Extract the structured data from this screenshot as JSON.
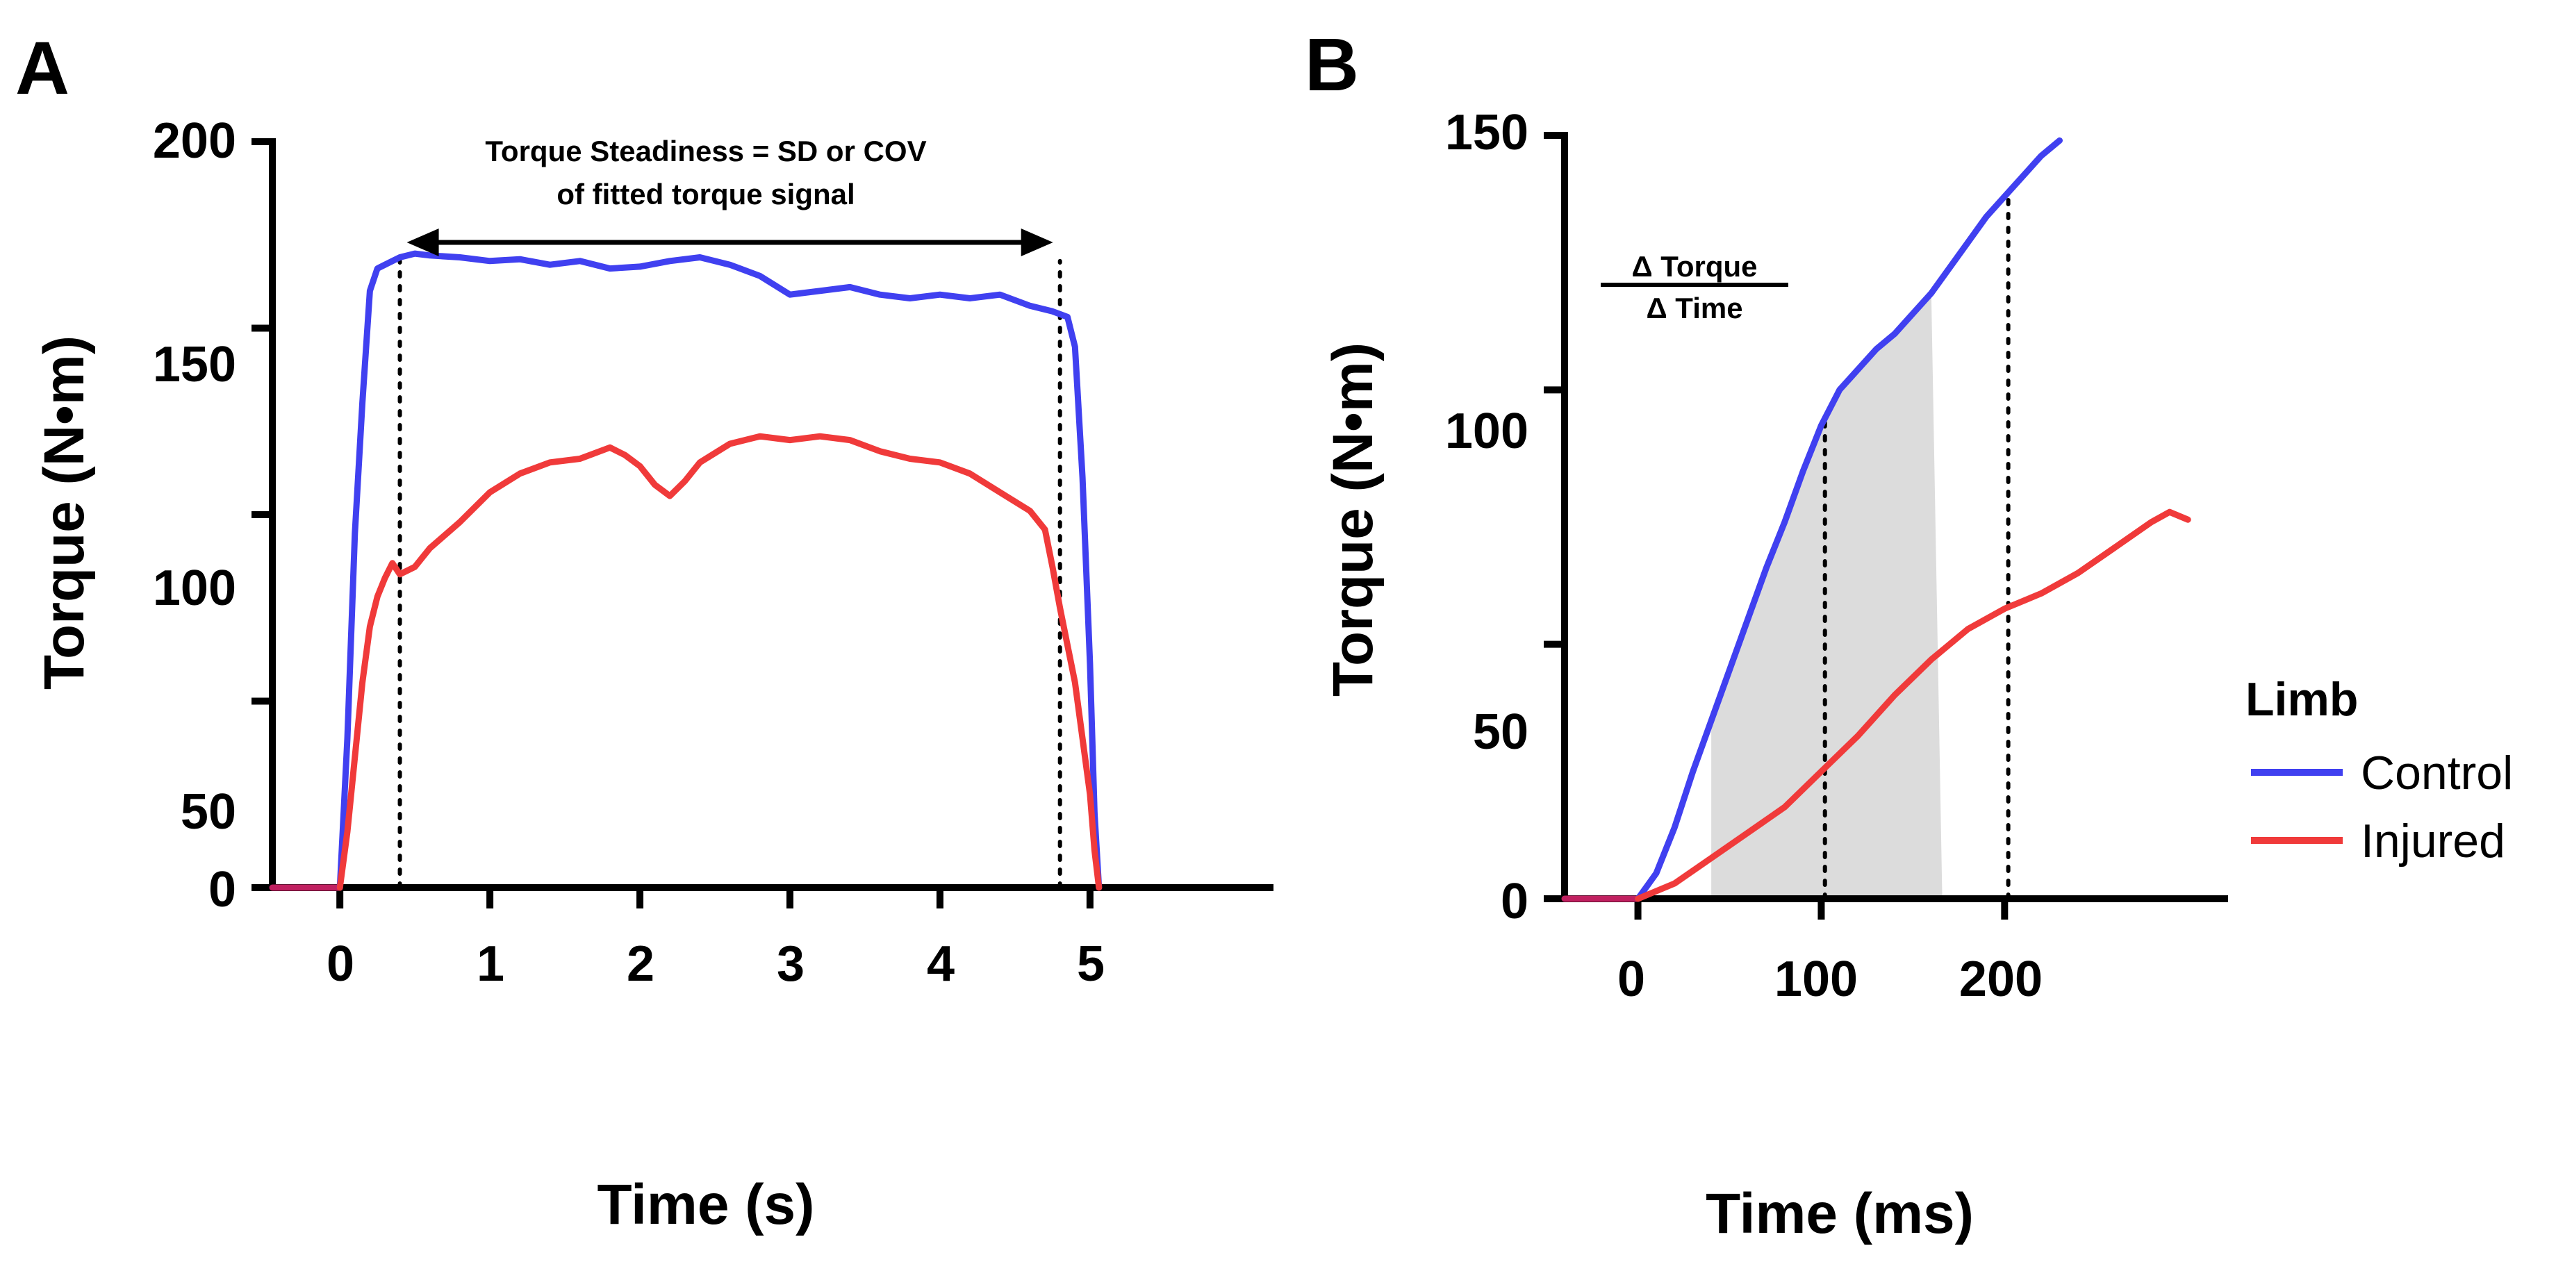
{
  "colors": {
    "control": "#4040f0",
    "injured": "#f03a3a",
    "pre_onset": "#c02060",
    "shade": "#dcdcdc"
  },
  "chart_data": [
    {
      "panel": "A",
      "type": "line",
      "title": "",
      "xlabel": "Time (s)",
      "ylabel": "Torque (N•m)",
      "xlim": [
        -0.45,
        6.2
      ],
      "ylim": [
        0,
        200
      ],
      "xticks": [
        0,
        1,
        2,
        3,
        4,
        5
      ],
      "yticks": [
        0,
        50,
        100,
        150,
        200
      ],
      "annotation": {
        "line1": "Torque Steadiness = SD or COV",
        "line2": "of fitted torque signal",
        "arrow_from": 0.4,
        "arrow_to": 4.8,
        "arrow_y": 173
      },
      "guides_x": [
        0.4,
        4.8
      ],
      "pre_onset": {
        "x": [
          -0.45,
          0.0
        ],
        "y": [
          0,
          0
        ]
      },
      "series": [
        {
          "name": "Control",
          "color_key": "control",
          "x": [
            0.0,
            0.05,
            0.1,
            0.15,
            0.2,
            0.25,
            0.3,
            0.35,
            0.4,
            0.5,
            0.6,
            0.8,
            1.0,
            1.2,
            1.4,
            1.6,
            1.8,
            2.0,
            2.2,
            2.4,
            2.6,
            2.8,
            3.0,
            3.2,
            3.4,
            3.6,
            3.8,
            4.0,
            4.2,
            4.4,
            4.6,
            4.75,
            4.85,
            4.9,
            4.95,
            5.0,
            5.03,
            5.06
          ],
          "y": [
            0,
            40,
            95,
            130,
            160,
            166,
            167,
            168,
            169,
            170,
            169.5,
            169,
            168,
            168.5,
            167,
            168,
            166,
            166.5,
            168,
            169,
            167,
            164,
            159,
            160,
            161,
            159,
            158,
            159,
            158,
            159,
            156,
            154.5,
            153,
            145,
            110,
            60,
            20,
            0
          ]
        },
        {
          "name": "Injured",
          "color_key": "injured",
          "x": [
            0.0,
            0.05,
            0.1,
            0.15,
            0.2,
            0.25,
            0.3,
            0.35,
            0.4,
            0.5,
            0.6,
            0.8,
            1.0,
            1.2,
            1.4,
            1.6,
            1.8,
            1.9,
            2.0,
            2.1,
            2.2,
            2.3,
            2.4,
            2.6,
            2.8,
            3.0,
            3.2,
            3.4,
            3.6,
            3.8,
            4.0,
            4.2,
            4.4,
            4.6,
            4.7,
            4.75,
            4.8,
            4.85,
            4.9,
            4.95,
            5.0,
            5.03,
            5.06
          ],
          "y": [
            0,
            15,
            35,
            55,
            70,
            78,
            83,
            87,
            84,
            86,
            91,
            98,
            106,
            111,
            114,
            115,
            118,
            116,
            113,
            108,
            105,
            109,
            114,
            119,
            121,
            120,
            121,
            120,
            117,
            115,
            114,
            111,
            106,
            101,
            96,
            86,
            75,
            65,
            55,
            40,
            25,
            10,
            0
          ]
        }
      ]
    },
    {
      "panel": "B",
      "type": "line",
      "title": "",
      "xlabel": "Time (ms)",
      "ylabel": "Torque (N•m)",
      "xlim": [
        -40,
        320
      ],
      "ylim": [
        0,
        150
      ],
      "xticks": [
        0,
        100,
        200
      ],
      "yticks": [
        0,
        50,
        100,
        150
      ],
      "annotation": {
        "numerator": "Δ Torque",
        "denominator": "Δ Time"
      },
      "guides_x": [
        102,
        202
      ],
      "shaded_x": [
        40,
        160
      ],
      "pre_onset": {
        "x": [
          -40,
          0
        ],
        "y": [
          0,
          0
        ]
      },
      "series": [
        {
          "name": "Control",
          "color_key": "control",
          "x": [
            0,
            10,
            20,
            30,
            40,
            50,
            60,
            70,
            80,
            90,
            100,
            110,
            120,
            130,
            140,
            150,
            160,
            170,
            180,
            190,
            200,
            210,
            220,
            230
          ],
          "y": [
            0,
            5,
            14,
            25,
            35,
            45,
            55,
            65,
            74,
            84,
            93,
            100,
            104,
            108,
            111,
            115,
            119,
            124,
            129,
            134,
            138,
            142,
            146,
            149
          ]
        },
        {
          "name": "Injured",
          "color_key": "injured",
          "x": [
            0,
            20,
            40,
            60,
            80,
            100,
            120,
            140,
            160,
            180,
            200,
            220,
            240,
            260,
            280,
            290,
            300
          ],
          "y": [
            0,
            3,
            8,
            13,
            18,
            25,
            32,
            40,
            47,
            53,
            57,
            60,
            64,
            69,
            74,
            76,
            74.5
          ]
        }
      ]
    }
  ],
  "legend": {
    "title": "Limb",
    "items": [
      {
        "label": "Control",
        "color_key": "control"
      },
      {
        "label": "Injured",
        "color_key": "injured"
      }
    ]
  }
}
